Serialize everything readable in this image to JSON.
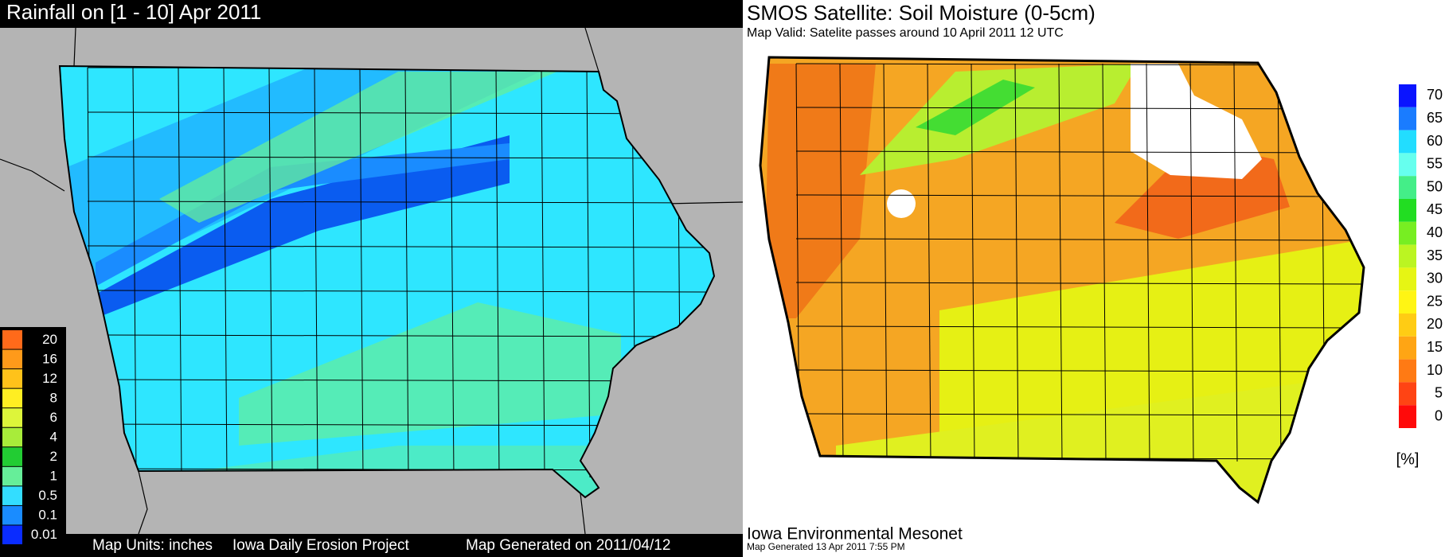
{
  "rainfall_map": {
    "title": "Rainfall on [1 - 10] Apr 2011",
    "legend": {
      "labels": [
        "20",
        "16",
        "12",
        "8",
        "6",
        "4",
        "2",
        "1",
        "0.5",
        "0.1",
        "0.01"
      ],
      "colors": [
        "#ff6a1a",
        "#ff9a1a",
        "#ffc21a",
        "#ffee22",
        "#ddf53a",
        "#a8ec3a",
        "#22cc33",
        "#66ee99",
        "#33ddff",
        "#1a8cff",
        "#0a2cff"
      ]
    },
    "footer": [
      "Map Units: inches",
      "Iowa Daily Erosion Project",
      "Map Generated on  2011/04/12"
    ]
  },
  "soil_moisture_map": {
    "title": "SMOS Satellite: Soil Moisture (0-5cm)",
    "subtitle": "Map Valid: Satelite passes around 10 April 2011 12 UTC",
    "colorbar": {
      "labels": [
        "70",
        "65",
        "60",
        "55",
        "50",
        "45",
        "40",
        "35",
        "30",
        "25",
        "20",
        "15",
        "10",
        "5",
        "0"
      ],
      "colors": [
        "#0a14ff",
        "#1a7cff",
        "#22ddff",
        "#66ffee",
        "#44ee88",
        "#22dd22",
        "#77ee22",
        "#bbf522",
        "#e6f514",
        "#fff514",
        "#ffcc14",
        "#ffa514",
        "#ff7a14",
        "#ff4414",
        "#ff0a0a"
      ],
      "unit": "[%]"
    },
    "footer": [
      "Iowa Environmental Mesonet",
      "Map Generated 13 Apr 2011 7:55 PM"
    ]
  }
}
